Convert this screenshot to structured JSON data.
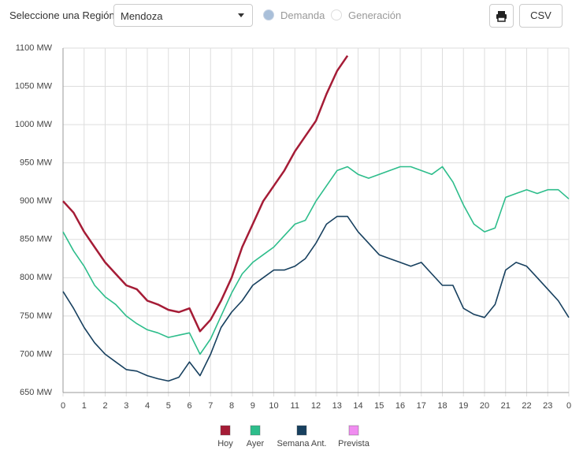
{
  "controls": {
    "region_label": "Seleccione una Región",
    "region_value": "Mendoza",
    "radio_1": "Demanda",
    "radio_2": "Generación",
    "csv": "CSV"
  },
  "chart_data": {
    "type": "line",
    "x": [
      0,
      0.5,
      1,
      1.5,
      2,
      2.5,
      3,
      3.5,
      4,
      4.5,
      5,
      5.5,
      6,
      6.5,
      7,
      7.5,
      8,
      8.5,
      9,
      9.5,
      10,
      10.5,
      11,
      11.5,
      12,
      12.5,
      13,
      13.5,
      14,
      14.5,
      15,
      15.5,
      16,
      16.5,
      17,
      17.5,
      18,
      18.5,
      19,
      19.5,
      20,
      20.5,
      21,
      21.5,
      22,
      22.5,
      23,
      23.5,
      24
    ],
    "series": [
      {
        "name": "Hoy",
        "color": "#a51c36",
        "values": [
          900,
          885,
          860,
          840,
          820,
          805,
          790,
          785,
          770,
          765,
          758,
          755,
          760,
          730,
          745,
          770,
          800,
          840,
          870,
          900,
          920,
          940,
          965,
          985,
          1005,
          1040,
          1070,
          1090,
          null,
          null,
          null,
          null,
          null,
          null,
          null,
          null,
          null,
          null,
          null,
          null,
          null,
          null,
          null,
          null,
          null,
          null,
          null,
          null,
          null
        ]
      },
      {
        "name": "Ayer",
        "color": "#2dbd8b",
        "values": [
          860,
          835,
          815,
          790,
          775,
          765,
          750,
          740,
          732,
          728,
          722,
          725,
          728,
          700,
          720,
          750,
          780,
          805,
          820,
          830,
          840,
          855,
          870,
          875,
          900,
          920,
          940,
          945,
          935,
          930,
          935,
          940,
          945,
          945,
          940,
          935,
          945,
          925,
          895,
          870,
          860,
          865,
          905,
          910,
          915,
          910,
          915,
          915,
          903
        ]
      },
      {
        "name": "Semana Ant.",
        "color": "#17405f",
        "values": [
          782,
          760,
          735,
          715,
          700,
          690,
          680,
          678,
          672,
          668,
          665,
          670,
          690,
          672,
          700,
          735,
          755,
          770,
          790,
          800,
          810,
          810,
          815,
          825,
          845,
          870,
          880,
          880,
          860,
          845,
          830,
          825,
          820,
          815,
          820,
          805,
          790,
          790,
          760,
          752,
          748,
          765,
          810,
          820,
          815,
          800,
          785,
          770,
          748
        ]
      },
      {
        "name": "Prevista",
        "color": "#f08cf0",
        "values": [
          null,
          null,
          null,
          null,
          null,
          null,
          null,
          null,
          null,
          null,
          null,
          null,
          null,
          null,
          null,
          null,
          null,
          null,
          null,
          null,
          null,
          null,
          null,
          null,
          null,
          null,
          null,
          null,
          null,
          null,
          null,
          null,
          null,
          null,
          null,
          null,
          null,
          null,
          null,
          null,
          null,
          null,
          null,
          null,
          null,
          null,
          null,
          null,
          null
        ]
      }
    ],
    "xlim": [
      0,
      24
    ],
    "xticks": [
      0,
      1,
      2,
      3,
      4,
      5,
      6,
      7,
      8,
      9,
      10,
      11,
      12,
      13,
      14,
      15,
      16,
      17,
      18,
      19,
      20,
      21,
      22,
      23,
      {
        "value": 24,
        "label": "0"
      }
    ],
    "ylim": [
      650,
      1100
    ],
    "yticks": [
      {
        "value": 650,
        "label": "650 MW"
      },
      {
        "value": 700,
        "label": "700 MW"
      },
      {
        "value": 750,
        "label": "750 MW"
      },
      {
        "value": 800,
        "label": "800 MW"
      },
      {
        "value": 850,
        "label": "850 MW"
      },
      {
        "value": 900,
        "label": "900 MW"
      },
      {
        "value": 950,
        "label": "950 MW"
      },
      {
        "value": 1000,
        "label": "1000 MW"
      },
      {
        "value": 1050,
        "label": "1050 MW"
      },
      {
        "value": 1100,
        "label": "1100 MW"
      }
    ],
    "grid": true
  }
}
